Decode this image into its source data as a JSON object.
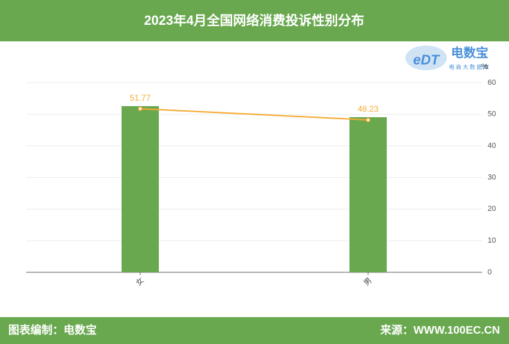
{
  "chart_data": {
    "type": "bar",
    "title": "2023年4月全国网络消费投诉性别分布",
    "categories": [
      "女",
      "男"
    ],
    "series": [
      {
        "type": "bar",
        "color": "#69a84f",
        "values": [
          52.6,
          49.1
        ]
      },
      {
        "type": "line",
        "color": "#f5ab35",
        "values": [
          51.77,
          48.23
        ]
      }
    ],
    "y_unit": "%",
    "ylim": [
      0,
      60
    ],
    "yticks": [
      0,
      10,
      20,
      30,
      40,
      50,
      60
    ],
    "grid": true
  },
  "logo": {
    "mark": "eDT",
    "name": "电数宝",
    "tagline": "电商大数据库"
  },
  "footer": {
    "left": "图表编制：电数宝",
    "right": "来源：WWW.100EC.CN"
  }
}
